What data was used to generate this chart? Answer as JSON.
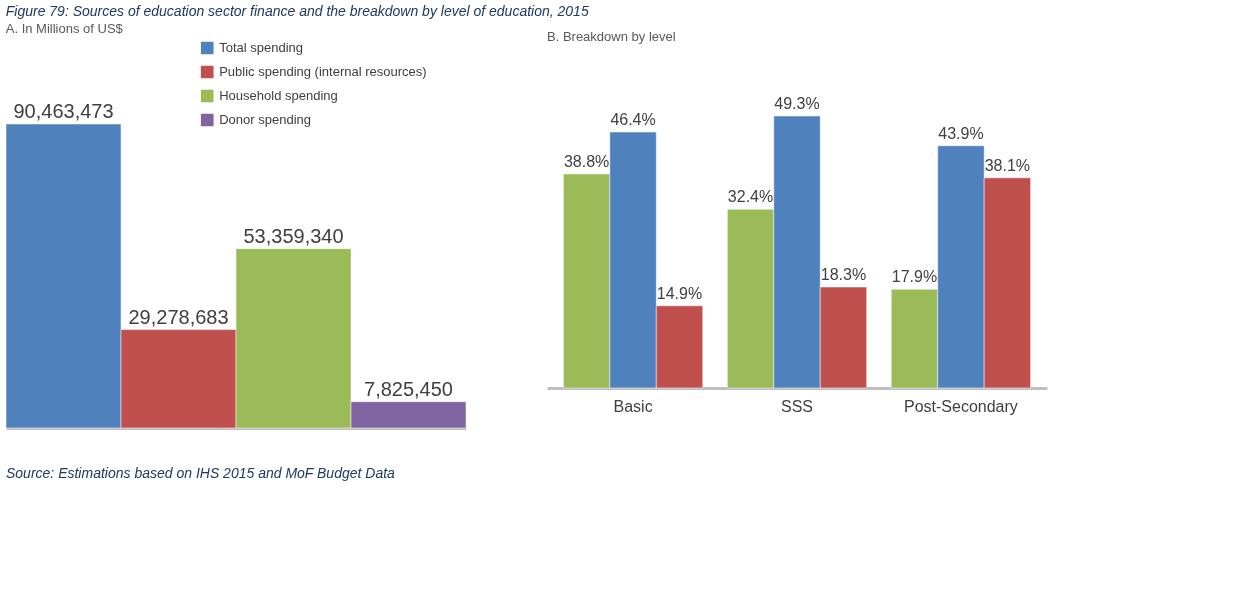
{
  "chart_data": [
    {
      "type": "bar",
      "title": "Figure 79: Sources of education sector finance and the breakdown by level of education, 2015",
      "subtitle": "A. In Millions of US$",
      "categories": [
        null,
        null,
        null,
        null
      ],
      "legend": "top right",
      "stacked": true,
      "series": [
        {
          "name": "Total spending",
          "color": "#4f81bd",
          "values": [
            90463473,
            null,
            null,
            null
          ],
          "value_labels": [
            "90,463,473",
            null,
            null,
            null
          ]
        },
        {
          "name": "Public spending (internal resources)",
          "color": "#c0504d",
          "values": [
            null,
            29278683,
            null,
            null
          ],
          "value_labels": [
            null,
            "29,278,683",
            null,
            null
          ]
        },
        {
          "name": "Household spending",
          "color": "#9bbb59",
          "values": [
            null,
            null,
            53359340,
            null
          ],
          "value_labels": [
            null,
            null,
            "53,359,340",
            null
          ]
        },
        {
          "name": "Donor spending",
          "color": "#8064a2",
          "values": [
            null,
            null,
            null,
            7825450
          ],
          "value_labels": [
            null,
            null,
            null,
            "7,825,450"
          ]
        }
      ]
    },
    {
      "type": "bar",
      "title": "B. Breakdown by level",
      "categories": [
        "Basic",
        "SSS",
        "Post-Secondary"
      ],
      "annotations": [
        "Source: Estimations based on IHS 2015 and MoF Budget Data"
      ],
      "series": [
        {
          "color": "#9bbb59",
          "values": [
            38.8,
            32.4,
            17.9
          ],
          "value_labels": [
            "38.8%",
            "32.4%",
            "17.9%"
          ]
        },
        {
          "color": "#4f81bd",
          "values": [
            46.4,
            49.3,
            43.9
          ],
          "value_labels": [
            "46.4%",
            "49.3%",
            "43.9%"
          ]
        },
        {
          "color": "#c0504d",
          "values": [
            14.9,
            18.3,
            38.1
          ],
          "value_labels": [
            "14.9%",
            "18.3%",
            "38.1%"
          ]
        }
      ]
    }
  ]
}
